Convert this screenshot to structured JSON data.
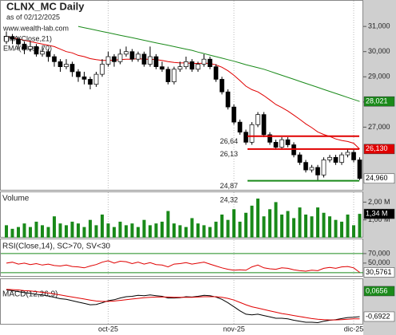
{
  "chart_data": [
    {
      "type": "candlestick",
      "title": "CLNX_MC Daily",
      "subtitle": "as of 02/12/2025",
      "source": "www.wealth-lab.com",
      "ohlc": [
        [
          30.4,
          30.8,
          30.3,
          30.6
        ],
        [
          30.6,
          30.7,
          30.3,
          30.5
        ],
        [
          30.5,
          30.6,
          30.1,
          30.3
        ],
        [
          30.3,
          30.4,
          29.9,
          30.1
        ],
        [
          30.1,
          30.4,
          30.0,
          30.2
        ],
        [
          30.2,
          30.3,
          29.8,
          29.9
        ],
        [
          29.9,
          30.2,
          29.8,
          30.0
        ],
        [
          30.0,
          30.1,
          29.6,
          29.8
        ],
        [
          29.8,
          29.9,
          29.4,
          29.6
        ],
        [
          29.6,
          29.7,
          29.2,
          29.4
        ],
        [
          29.4,
          29.7,
          29.3,
          29.5
        ],
        [
          29.5,
          29.6,
          29.0,
          29.2
        ],
        [
          29.2,
          29.3,
          28.8,
          29.0
        ],
        [
          29.0,
          29.2,
          28.7,
          28.9
        ],
        [
          28.9,
          29.0,
          28.5,
          28.7
        ],
        [
          28.7,
          29.2,
          28.6,
          29.1
        ],
        [
          29.1,
          29.7,
          29.0,
          29.5
        ],
        [
          29.5,
          30.0,
          29.4,
          29.8
        ],
        [
          29.8,
          29.9,
          29.4,
          29.6
        ],
        [
          29.6,
          30.1,
          29.5,
          29.9
        ],
        [
          29.9,
          30.2,
          29.8,
          30.0
        ],
        [
          30.0,
          30.1,
          29.6,
          29.7
        ],
        [
          29.7,
          30.0,
          29.6,
          29.9
        ],
        [
          29.9,
          30.0,
          29.4,
          29.5
        ],
        [
          29.5,
          30.2,
          29.4,
          29.8
        ],
        [
          29.8,
          29.9,
          29.3,
          29.4
        ],
        [
          29.4,
          29.6,
          29.2,
          29.3
        ],
        [
          29.3,
          29.4,
          28.7,
          28.8
        ],
        [
          28.8,
          29.4,
          28.7,
          29.3
        ],
        [
          29.3,
          29.6,
          29.2,
          29.4
        ],
        [
          29.4,
          29.8,
          29.3,
          29.6
        ],
        [
          29.6,
          29.7,
          29.2,
          29.3
        ],
        [
          29.3,
          29.6,
          29.2,
          29.5
        ],
        [
          29.5,
          29.9,
          29.4,
          29.7
        ],
        [
          29.7,
          29.8,
          29.3,
          29.4
        ],
        [
          29.4,
          29.5,
          28.8,
          28.9
        ],
        [
          28.9,
          29.0,
          28.3,
          28.4
        ],
        [
          28.4,
          28.5,
          27.7,
          27.8
        ],
        [
          27.8,
          27.9,
          27.1,
          27.2
        ],
        [
          27.2,
          27.3,
          26.7,
          26.8
        ],
        [
          26.8,
          26.9,
          26.3,
          26.4
        ],
        [
          26.4,
          27.2,
          26.3,
          27.1
        ],
        [
          27.1,
          27.6,
          27.0,
          27.5
        ],
        [
          27.5,
          27.6,
          26.6,
          26.7
        ],
        [
          26.7,
          26.8,
          26.3,
          26.4
        ],
        [
          26.4,
          26.5,
          26.1,
          26.2
        ],
        [
          26.2,
          26.6,
          26.1,
          26.5
        ],
        [
          26.5,
          26.6,
          26.2,
          26.3
        ],
        [
          26.3,
          26.4,
          25.8,
          25.9
        ],
        [
          25.9,
          26.0,
          25.5,
          25.6
        ],
        [
          25.6,
          25.7,
          25.2,
          25.3
        ],
        [
          25.3,
          25.5,
          25.2,
          25.4
        ],
        [
          25.4,
          25.5,
          24.9,
          25.1
        ],
        [
          25.1,
          25.8,
          25.0,
          25.7
        ],
        [
          25.7,
          25.9,
          25.6,
          25.8
        ],
        [
          25.8,
          25.9,
          25.5,
          25.6
        ],
        [
          25.6,
          26.0,
          25.5,
          25.9
        ],
        [
          25.9,
          26.1,
          25.8,
          26.0
        ],
        [
          26.0,
          26.1,
          25.6,
          25.7
        ],
        [
          25.7,
          25.8,
          24.9,
          24.96
        ]
      ],
      "last_label": {
        "value": 24.96,
        "label": "24,960"
      },
      "series": [
        {
          "name": "EMA(Close,21)",
          "color": "#e00000",
          "last_label": {
            "value": 26.13,
            "label": "26,130"
          },
          "values": [
            30.6,
            30.55,
            30.5,
            30.45,
            30.4,
            30.35,
            30.3,
            30.25,
            30.2,
            30.1,
            30.0,
            29.95,
            29.85,
            29.8,
            29.72,
            29.68,
            29.65,
            29.65,
            29.66,
            29.68,
            29.7,
            29.7,
            29.72,
            29.7,
            29.7,
            29.68,
            29.65,
            29.6,
            29.57,
            29.55,
            29.55,
            29.53,
            29.53,
            29.54,
            29.53,
            29.47,
            29.38,
            29.24,
            29.06,
            28.85,
            28.63,
            28.49,
            28.4,
            28.25,
            28.08,
            27.9,
            27.78,
            27.64,
            27.48,
            27.31,
            27.13,
            26.98,
            26.81,
            26.71,
            26.63,
            26.53,
            26.47,
            26.43,
            26.36,
            26.13
          ]
        },
        {
          "name": "EMA(Close,70)",
          "color": "#1a8a1a",
          "last_label": {
            "value": 28.021,
            "label": "28,021"
          },
          "values": [
            null,
            null,
            null,
            null,
            null,
            null,
            null,
            null,
            null,
            null,
            null,
            null,
            31.0,
            30.95,
            30.9,
            30.85,
            30.8,
            30.75,
            30.7,
            30.65,
            30.6,
            30.55,
            30.5,
            30.45,
            30.4,
            30.35,
            30.3,
            30.25,
            30.2,
            30.15,
            30.1,
            30.05,
            29.98,
            29.92,
            29.86,
            29.8,
            29.74,
            29.68,
            29.62,
            29.55,
            29.48,
            29.42,
            29.36,
            29.3,
            29.22,
            29.14,
            29.06,
            28.98,
            28.9,
            28.82,
            28.74,
            28.66,
            28.58,
            28.5,
            28.42,
            28.34,
            28.26,
            28.18,
            28.1,
            28.021
          ]
        }
      ],
      "levels": [
        {
          "value": 26.64,
          "label": "26,64",
          "color": "#e00000"
        },
        {
          "value": 26.13,
          "label": "26,13",
          "color": "#e00000"
        },
        {
          "value": 24.87,
          "label": "24,87",
          "color": "#1a8a1a"
        },
        {
          "value": 24.32,
          "label": "24,32"
        }
      ],
      "ylim": [
        24.51,
        32.05
      ],
      "yticks": [
        {
          "value": 27,
          "label": "27,000"
        },
        {
          "value": 28,
          "label": "28,000"
        },
        {
          "value": 29,
          "label": "29,000"
        },
        {
          "value": 30,
          "label": "30,000"
        },
        {
          "value": 31,
          "label": "31,000"
        }
      ]
    },
    {
      "type": "bar",
      "title": "Volume",
      "color": "#1a8a1a",
      "values": [
        0.7,
        0.5,
        0.6,
        0.8,
        0.6,
        0.9,
        0.7,
        0.6,
        1.2,
        0.8,
        0.7,
        0.9,
        0.8,
        0.6,
        1.0,
        0.7,
        1.3,
        0.8,
        0.6,
        0.9,
        0.7,
        0.8,
        0.6,
        1.0,
        0.7,
        0.8,
        0.9,
        1.5,
        0.8,
        0.7,
        0.6,
        1.1,
        0.8,
        0.7,
        0.6,
        0.9,
        1.3,
        1.0,
        1.6,
        0.9,
        1.4,
        1.8,
        2.2,
        1.2,
        1.6,
        2.0,
        1.3,
        1.5,
        1.1,
        1.7,
        1.3,
        1.2,
        1.7,
        1.4,
        1.2,
        1.0,
        0.9,
        1.3,
        0.7,
        1.34
      ],
      "last_label": {
        "value": 1.34,
        "label": "1,34 M"
      },
      "ylim": [
        0,
        2.6
      ],
      "yticks": [
        {
          "value": 1,
          "label": "1,00 M"
        },
        {
          "value": 2,
          "label": "2,00 M"
        }
      ]
    },
    {
      "type": "line",
      "title": "RSI(Close,14), SC>70, SV<30",
      "series": [
        {
          "color": "#e00000",
          "last_label": {
            "value": 30.5761,
            "label": "30,5761"
          },
          "values": [
            50,
            52,
            48,
            50,
            47,
            49,
            46,
            48,
            45,
            44,
            46,
            43,
            42,
            40,
            44,
            47,
            52,
            55,
            50,
            54,
            53,
            49,
            52,
            48,
            51,
            47,
            46,
            42,
            48,
            49,
            51,
            48,
            50,
            52,
            48,
            44,
            40,
            37,
            35,
            36,
            35,
            42,
            46,
            40,
            38,
            37,
            40,
            39,
            36,
            34,
            33,
            35,
            34,
            39,
            41,
            39,
            42,
            43,
            40,
            30.5761
          ]
        }
      ],
      "bands": [
        30,
        70
      ],
      "band_color": "#1a8a1a",
      "ylim": [
        23,
        100
      ],
      "yticks": [
        {
          "value": 50,
          "label": "50,000"
        },
        {
          "value": 70,
          "label": "70,000"
        }
      ]
    },
    {
      "type": "line",
      "title": "MACD(12,26,9)",
      "series": [
        {
          "color": "#000000",
          "values": [
            0.1,
            0.08,
            0.05,
            0.02,
            0.0,
            -0.03,
            -0.05,
            -0.08,
            -0.12,
            -0.16,
            -0.18,
            -0.22,
            -0.26,
            -0.3,
            -0.34,
            -0.33,
            -0.28,
            -0.22,
            -0.19,
            -0.14,
            -0.1,
            -0.09,
            -0.06,
            -0.07,
            -0.05,
            -0.07,
            -0.09,
            -0.14,
            -0.14,
            -0.13,
            -0.1,
            -0.11,
            -0.09,
            -0.06,
            -0.07,
            -0.11,
            -0.18,
            -0.28,
            -0.4,
            -0.52,
            -0.62,
            -0.64,
            -0.62,
            -0.66,
            -0.7,
            -0.74,
            -0.74,
            -0.76,
            -0.8,
            -0.83,
            -0.86,
            -0.86,
            -0.87,
            -0.83,
            -0.8,
            -0.78,
            -0.75,
            -0.72,
            -0.71,
            -0.6922
          ],
          "last_label": {
            "value": -0.6922,
            "label": "-0,6922"
          }
        },
        {
          "color": "#e00000",
          "values": [
            0.12,
            0.11,
            0.1,
            0.08,
            0.07,
            0.05,
            0.03,
            0.01,
            -0.02,
            -0.05,
            -0.08,
            -0.11,
            -0.14,
            -0.17,
            -0.2,
            -0.23,
            -0.24,
            -0.24,
            -0.23,
            -0.21,
            -0.19,
            -0.17,
            -0.15,
            -0.13,
            -0.12,
            -0.11,
            -0.11,
            -0.11,
            -0.12,
            -0.12,
            -0.12,
            -0.12,
            -0.11,
            -0.1,
            -0.1,
            -0.1,
            -0.12,
            -0.15,
            -0.2,
            -0.27,
            -0.34,
            -0.4,
            -0.44,
            -0.48,
            -0.52,
            -0.56,
            -0.6,
            -0.63,
            -0.66,
            -0.69,
            -0.72,
            -0.75,
            -0.77,
            -0.78,
            -0.79,
            -0.79,
            -0.78,
            -0.77,
            -0.76,
            -0.7578
          ]
        }
      ],
      "histogram_last": {
        "value": 0.0656,
        "label": "0,0656",
        "color": "#1a8a1a"
      },
      "ylim": [
        -0.93,
        0.42
      ],
      "xticks": [
        {
          "value": 17,
          "label": "oct-25"
        },
        {
          "value": 38,
          "label": "nov-25"
        },
        {
          "value": 58,
          "label": "dic-25"
        }
      ]
    }
  ]
}
